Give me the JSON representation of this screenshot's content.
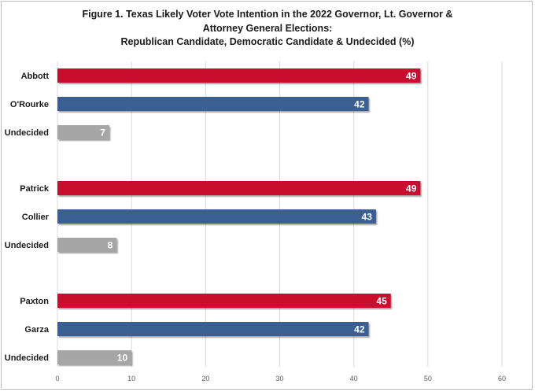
{
  "title_lines": [
    "Figure 1. Texas Likely Voter Vote Intention in the 2022 Governor, Lt. Governor &",
    "Attorney General Elections:",
    "Republican Candidate, Democratic Candidate & Undecided (%)"
  ],
  "colors": {
    "republican": "#c8102e",
    "democratic": "#3a5f93",
    "undecided": "#a6a6a6",
    "grid": "#d9d9d9"
  },
  "chart_data": {
    "type": "bar",
    "orientation": "horizontal",
    "title": "Figure 1. Texas Likely Voter Vote Intention in the 2022 Governor, Lt. Governor & Attorney General Elections: Republican Candidate, Democratic Candidate & Undecided (%)",
    "xlabel": "",
    "ylabel": "",
    "xlim": [
      0,
      60
    ],
    "xticks": [
      0,
      10,
      20,
      30,
      40,
      50,
      60
    ],
    "grid": true,
    "legend": "none",
    "groups": [
      {
        "bars": [
          {
            "label": "Abbott",
            "value": 49,
            "party": "republican"
          },
          {
            "label": "O'Rourke",
            "value": 42,
            "party": "democratic"
          },
          {
            "label": "Undecided",
            "value": 7,
            "party": "undecided"
          }
        ]
      },
      {
        "bars": [
          {
            "label": "Patrick",
            "value": 49,
            "party": "republican"
          },
          {
            "label": "Collier",
            "value": 43,
            "party": "democratic"
          },
          {
            "label": "Undecided",
            "value": 8,
            "party": "undecided"
          }
        ]
      },
      {
        "bars": [
          {
            "label": "Paxton",
            "value": 45,
            "party": "republican"
          },
          {
            "label": "Garza",
            "value": 42,
            "party": "democratic"
          },
          {
            "label": "Undecided",
            "value": 10,
            "party": "undecided"
          }
        ]
      }
    ]
  }
}
